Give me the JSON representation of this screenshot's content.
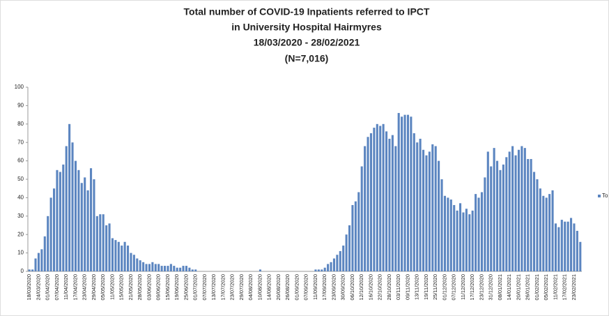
{
  "chart_data": {
    "type": "bar",
    "title": [
      "Total number of COVID-19 Inpatients referred to IPCT",
      "in University Hospital Hairmyres",
      "18/03/2020 - 28/02/2021",
      "(N=7,016)"
    ],
    "categories": [
      "18/03/2020",
      null,
      null,
      "24/03/2020",
      null,
      null,
      "01/04/2020",
      null,
      null,
      "07/04/2020",
      null,
      null,
      "11/04/2020",
      null,
      null,
      "17/04/2020",
      null,
      null,
      "23/04/2020",
      null,
      null,
      "29/04/2020",
      null,
      null,
      "05/05/2020",
      null,
      null,
      "11/05/2020",
      null,
      null,
      "15/05/2020",
      null,
      null,
      "21/05/2020",
      null,
      null,
      "28/05/2020",
      null,
      null,
      "03/06/2020",
      null,
      null,
      "09/06/2020",
      null,
      null,
      "15/06/2020",
      null,
      null,
      "19/06/2020",
      null,
      null,
      "25/06/2020",
      null,
      null,
      "01/07/2020",
      null,
      null,
      "07/07/2020",
      null,
      null,
      "13/07/2020",
      null,
      null,
      "17/07/2020",
      null,
      null,
      "23/07/2020",
      null,
      null,
      "29/07/2020",
      null,
      null,
      "04/08/2020",
      null,
      null,
      "10/08/2020",
      null,
      null,
      "14/08/2020",
      null,
      null,
      "20/08/2020",
      null,
      null,
      "26/08/2020",
      null,
      null,
      "01/09/2020",
      null,
      null,
      "07/09/2020",
      null,
      null,
      "11/09/2020",
      null,
      null,
      "17/09/2020",
      null,
      null,
      "23/09/2020",
      null,
      null,
      "30/09/2020",
      null,
      null,
      "06/10/2020",
      null,
      null,
      "12/10/2020",
      null,
      null,
      "16/10/2020",
      null,
      null,
      "22/10/2020",
      null,
      null,
      "28/10/2020",
      null,
      null,
      "03/11/2020",
      null,
      null,
      "09/11/2020",
      null,
      null,
      "13/11/2020",
      null,
      null,
      "19/11/2020",
      null,
      null,
      "25/11/2020",
      null,
      null,
      "01/12/2020",
      null,
      null,
      "07/12/2020",
      null,
      null,
      "11/12/2020",
      null,
      null,
      "17/12/2020",
      null,
      null,
      "23/12/2020",
      null,
      null,
      "31/12/2020",
      null,
      null,
      "08/01/2021",
      null,
      null,
      "14/01/2021",
      null,
      null,
      "20/01/2021",
      null,
      null,
      "26/01/2021",
      null,
      null,
      "01/02/2021",
      null,
      null,
      "05/02/2021",
      null,
      null,
      "11/02/2021",
      null,
      null,
      "17/02/2021",
      null,
      null,
      "23/02/2021",
      null,
      null
    ],
    "series": [
      {
        "name": "To",
        "color": "#5b85c0",
        "values": [
          1,
          1,
          7,
          10,
          12,
          19,
          30,
          40,
          45,
          55,
          54,
          58,
          68,
          80,
          70,
          60,
          55,
          48,
          51,
          44,
          56,
          50,
          30,
          31,
          31,
          25,
          26,
          18,
          17,
          16,
          14,
          16,
          14,
          10,
          9,
          7,
          6,
          5,
          4,
          4,
          5,
          4,
          4,
          3,
          3,
          3,
          4,
          3,
          2,
          2,
          3,
          3,
          2,
          1,
          1,
          0,
          0,
          0,
          0,
          0,
          0,
          0,
          0,
          0,
          0,
          0,
          0,
          0,
          0,
          0,
          0,
          0,
          0,
          0,
          0,
          1,
          0,
          0,
          0,
          0,
          0,
          0,
          0,
          0,
          0,
          0,
          0,
          0,
          0,
          0,
          0,
          0,
          0,
          1,
          1,
          1,
          2,
          4,
          5,
          7,
          9,
          11,
          14,
          20,
          25,
          36,
          38,
          43,
          57,
          68,
          73,
          75,
          78,
          80,
          79,
          80,
          76,
          72,
          74,
          68,
          86,
          84,
          85,
          85,
          84,
          75,
          70,
          72,
          66,
          63,
          65,
          69,
          68,
          60,
          50,
          41,
          40,
          39,
          36,
          33,
          37,
          32,
          34,
          31,
          33,
          42,
          40,
          43,
          51,
          65,
          57,
          67,
          60,
          55,
          58,
          62,
          65,
          68,
          63,
          66,
          68,
          67,
          61,
          61,
          54,
          50,
          45,
          41,
          40,
          42,
          44,
          26,
          24,
          28,
          27,
          27,
          29,
          26,
          22,
          16
        ]
      }
    ],
    "ylim": [
      0,
      100
    ],
    "yticks": [
      0,
      10,
      20,
      30,
      40,
      50,
      60,
      70,
      80,
      90,
      100
    ],
    "grid": false
  }
}
